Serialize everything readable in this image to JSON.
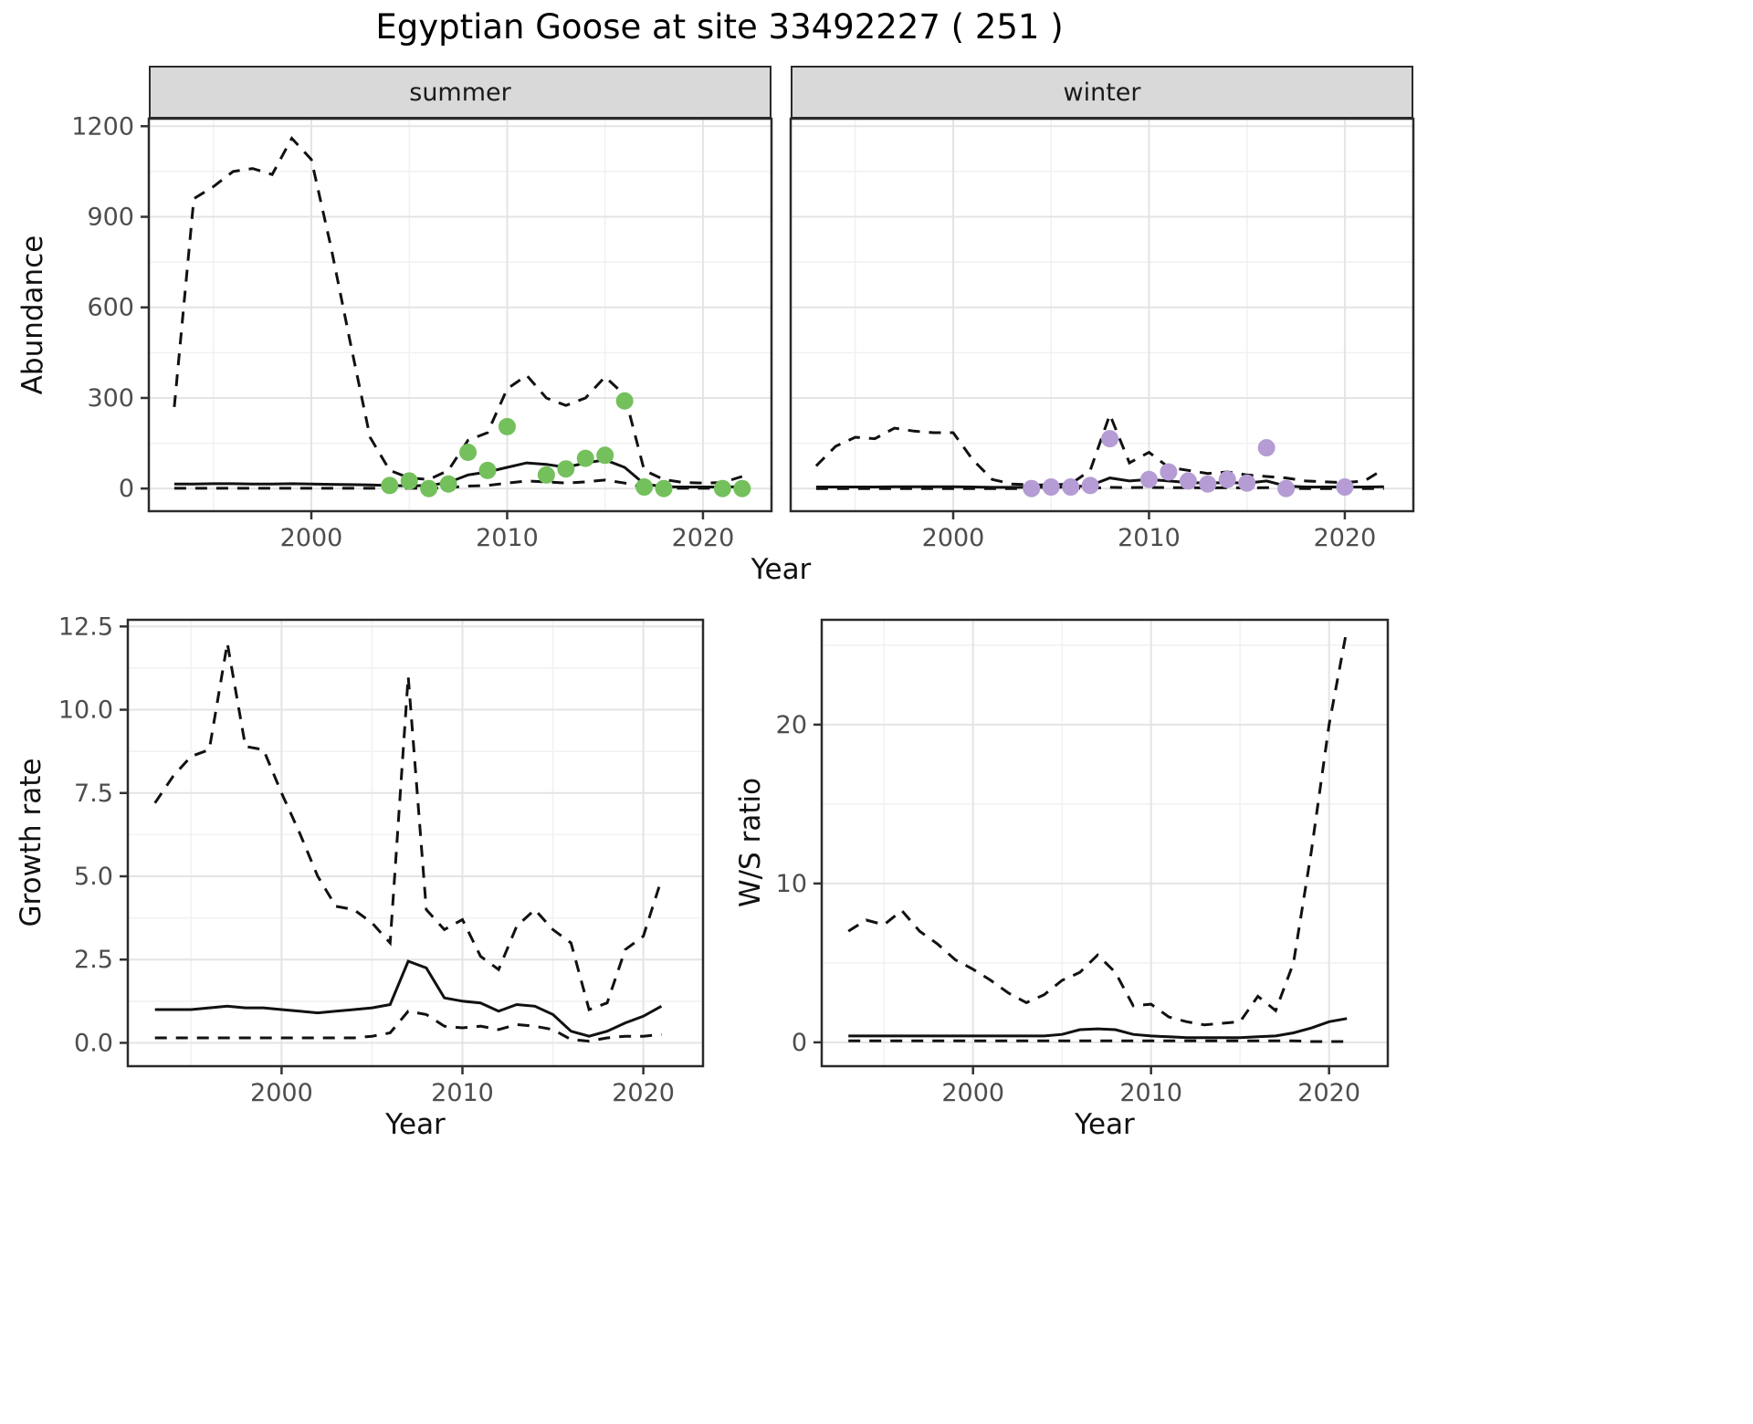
{
  "chart_data": {
    "type": "line",
    "title": "Egyptian Goose at site 33492227 ( 251 )",
    "facets": [
      "summer",
      "winter"
    ],
    "axes": {
      "abundance_y": "Abundance",
      "growth_y": "Growth rate",
      "ws_y": "W/S ratio",
      "x": "Year"
    },
    "legend": "none",
    "line_style": {
      "mean": "solid",
      "upper": "dashed",
      "lower": "dashed",
      "color": "#111111"
    },
    "panels": [
      {
        "id": "abundance-summer",
        "facet": "summer",
        "xlim": [
          1991.7,
          2023.5
        ],
        "ylim": [
          -75,
          1225
        ],
        "xticks": [
          2000,
          2010,
          2020
        ],
        "xtick_labels": [
          "2000",
          "2010",
          "2020"
        ],
        "yticks": [
          0,
          300,
          600,
          900,
          1200
        ],
        "ytick_labels": [
          "0",
          "300",
          "600",
          "900",
          "1200"
        ],
        "series": {
          "years": [
            1993,
            1994,
            1995,
            1996,
            1997,
            1998,
            1999,
            2000,
            2001,
            2002,
            2003,
            2004,
            2005,
            2006,
            2007,
            2008,
            2009,
            2010,
            2011,
            2012,
            2013,
            2014,
            2015,
            2016,
            2017,
            2018,
            2019,
            2020,
            2021,
            2022
          ],
          "upper": [
            270,
            960,
            1000,
            1050,
            1060,
            1040,
            1160,
            1090,
            800,
            480,
            170,
            60,
            35,
            30,
            60,
            160,
            185,
            330,
            375,
            300,
            275,
            300,
            370,
            310,
            60,
            30,
            20,
            18,
            20,
            40
          ],
          "mean": [
            15,
            15,
            16,
            16,
            15,
            15,
            16,
            15,
            14,
            13,
            12,
            10,
            9,
            10,
            20,
            45,
            55,
            70,
            85,
            80,
            70,
            85,
            95,
            70,
            15,
            6,
            5,
            5,
            5,
            6
          ],
          "lower": [
            1,
            1,
            1,
            1,
            1,
            1,
            1,
            1,
            1,
            1,
            1,
            1,
            1,
            1,
            3,
            8,
            10,
            18,
            25,
            22,
            18,
            22,
            28,
            18,
            3,
            1,
            1,
            1,
            1,
            1
          ]
        },
        "points": [
          [
            2004,
            10
          ],
          [
            2005,
            25
          ],
          [
            2006,
            0
          ],
          [
            2007,
            15
          ],
          [
            2008,
            120
          ],
          [
            2009,
            60
          ],
          [
            2010,
            205
          ],
          [
            2012,
            45
          ],
          [
            2013,
            65
          ],
          [
            2014,
            100
          ],
          [
            2015,
            110
          ],
          [
            2016,
            290
          ],
          [
            2017,
            5
          ],
          [
            2018,
            0
          ],
          [
            2021,
            0
          ],
          [
            2022,
            0
          ]
        ],
        "point_color": "#74c05c"
      },
      {
        "id": "abundance-winter",
        "facet": "winter",
        "xlim": [
          1991.7,
          2023.5
        ],
        "ylim": [
          -75,
          1225
        ],
        "xticks": [
          2000,
          2010,
          2020
        ],
        "xtick_labels": [
          "2000",
          "2010",
          "2020"
        ],
        "yticks": [
          0,
          300,
          600,
          900,
          1200
        ],
        "ytick_labels": [
          "0",
          "300",
          "600",
          "900",
          "1200"
        ],
        "series": {
          "years": [
            1993,
            1994,
            1995,
            1996,
            1997,
            1998,
            1999,
            2000,
            2001,
            2002,
            2003,
            2004,
            2005,
            2006,
            2007,
            2008,
            2009,
            2010,
            2011,
            2012,
            2013,
            2014,
            2015,
            2016,
            2017,
            2018,
            2019,
            2020,
            2021,
            2022
          ],
          "upper": [
            75,
            140,
            170,
            165,
            200,
            190,
            185,
            185,
            95,
            30,
            15,
            12,
            12,
            15,
            60,
            245,
            85,
            120,
            70,
            60,
            50,
            55,
            45,
            40,
            35,
            25,
            22,
            20,
            25,
            65
          ],
          "mean": [
            5,
            5,
            5,
            5,
            6,
            6,
            6,
            6,
            5,
            4,
            4,
            4,
            4,
            5,
            10,
            35,
            25,
            30,
            25,
            20,
            18,
            20,
            18,
            25,
            8,
            5,
            5,
            5,
            5,
            6
          ],
          "lower": [
            0,
            0,
            0,
            0,
            0,
            0,
            0,
            0,
            0,
            0,
            0,
            0,
            0,
            1,
            1,
            4,
            3,
            4,
            3,
            3,
            2,
            3,
            2,
            3,
            1,
            0,
            0,
            0,
            0,
            0
          ]
        },
        "points": [
          [
            2004,
            0
          ],
          [
            2005,
            5
          ],
          [
            2006,
            5
          ],
          [
            2007,
            10
          ],
          [
            2008,
            165
          ],
          [
            2010,
            30
          ],
          [
            2011,
            55
          ],
          [
            2012,
            25
          ],
          [
            2013,
            15
          ],
          [
            2014,
            30
          ],
          [
            2015,
            18
          ],
          [
            2016,
            135
          ],
          [
            2017,
            0
          ],
          [
            2020,
            5
          ]
        ],
        "point_color": "#b59cd4"
      },
      {
        "id": "growth-rate",
        "facet": null,
        "xlim": [
          1991.5,
          2023.3
        ],
        "ylim": [
          -0.7,
          12.7
        ],
        "xticks": [
          2000,
          2010,
          2020
        ],
        "xtick_labels": [
          "2000",
          "2010",
          "2020"
        ],
        "yticks": [
          0,
          2.5,
          5,
          7.5,
          10,
          12.5
        ],
        "ytick_labels": [
          "0.0",
          "2.5",
          "5.0",
          "7.5",
          "10.0",
          "12.5"
        ],
        "series": {
          "years": [
            1993,
            1994,
            1995,
            1996,
            1997,
            1998,
            1999,
            2000,
            2001,
            2002,
            2003,
            2004,
            2005,
            2006,
            2007,
            2008,
            2009,
            2010,
            2011,
            2012,
            2013,
            2014,
            2015,
            2016,
            2017,
            2018,
            2019,
            2020,
            2021
          ],
          "upper": [
            7.2,
            8.0,
            8.6,
            8.8,
            12.0,
            8.9,
            8.8,
            7.5,
            6.3,
            5.0,
            4.1,
            4.0,
            3.6,
            3.0,
            11.0,
            4.0,
            3.4,
            3.7,
            2.6,
            2.2,
            3.5,
            4.0,
            3.4,
            3.0,
            1.0,
            1.2,
            2.8,
            3.2,
            4.9
          ],
          "mean": [
            1.0,
            1.0,
            1.0,
            1.05,
            1.1,
            1.05,
            1.05,
            1.0,
            0.95,
            0.9,
            0.95,
            1.0,
            1.05,
            1.15,
            2.45,
            2.25,
            1.35,
            1.25,
            1.2,
            0.95,
            1.15,
            1.1,
            0.85,
            0.35,
            0.2,
            0.35,
            0.6,
            0.8,
            1.1
          ],
          "lower": [
            0.15,
            0.15,
            0.15,
            0.15,
            0.15,
            0.15,
            0.15,
            0.15,
            0.15,
            0.15,
            0.15,
            0.15,
            0.2,
            0.3,
            0.95,
            0.85,
            0.5,
            0.45,
            0.5,
            0.4,
            0.55,
            0.5,
            0.4,
            0.1,
            0.05,
            0.15,
            0.2,
            0.2,
            0.25
          ]
        },
        "points": [],
        "point_color": "#111111"
      },
      {
        "id": "ws-ratio",
        "facet": null,
        "xlim": [
          1991.5,
          2023.3
        ],
        "ylim": [
          -1.5,
          26.6
        ],
        "xticks": [
          2000,
          2010,
          2020
        ],
        "xtick_labels": [
          "2000",
          "2010",
          "2020"
        ],
        "yticks": [
          0,
          10,
          20
        ],
        "ytick_labels": [
          "0",
          "10",
          "20"
        ],
        "series": {
          "years": [
            1993,
            1994,
            1995,
            1996,
            1997,
            1998,
            1999,
            2000,
            2001,
            2002,
            2003,
            2004,
            2005,
            2006,
            2007,
            2008,
            2009,
            2010,
            2011,
            2012,
            2013,
            2014,
            2015,
            2016,
            2017,
            2018,
            2019,
            2020,
            2021
          ],
          "upper": [
            7.0,
            7.7,
            7.4,
            8.3,
            7.0,
            6.2,
            5.2,
            4.6,
            3.9,
            3.1,
            2.5,
            3.0,
            3.9,
            4.4,
            5.5,
            4.4,
            2.3,
            2.4,
            1.6,
            1.3,
            1.1,
            1.2,
            1.3,
            2.9,
            2.0,
            5.0,
            12.0,
            20.0,
            26.0
          ],
          "mean": [
            0.4,
            0.4,
            0.4,
            0.4,
            0.4,
            0.4,
            0.4,
            0.4,
            0.4,
            0.4,
            0.4,
            0.4,
            0.5,
            0.8,
            0.85,
            0.8,
            0.5,
            0.4,
            0.35,
            0.3,
            0.3,
            0.3,
            0.3,
            0.35,
            0.4,
            0.6,
            0.9,
            1.3,
            1.5
          ],
          "lower": [
            0.1,
            0.1,
            0.1,
            0.1,
            0.1,
            0.1,
            0.1,
            0.1,
            0.1,
            0.1,
            0.1,
            0.1,
            0.1,
            0.1,
            0.1,
            0.1,
            0.1,
            0.1,
            0.1,
            0.1,
            0.1,
            0.1,
            0.1,
            0.1,
            0.1,
            0.1,
            0.05,
            0.05,
            0.05
          ]
        },
        "points": [],
        "point_color": "#111111"
      }
    ]
  }
}
